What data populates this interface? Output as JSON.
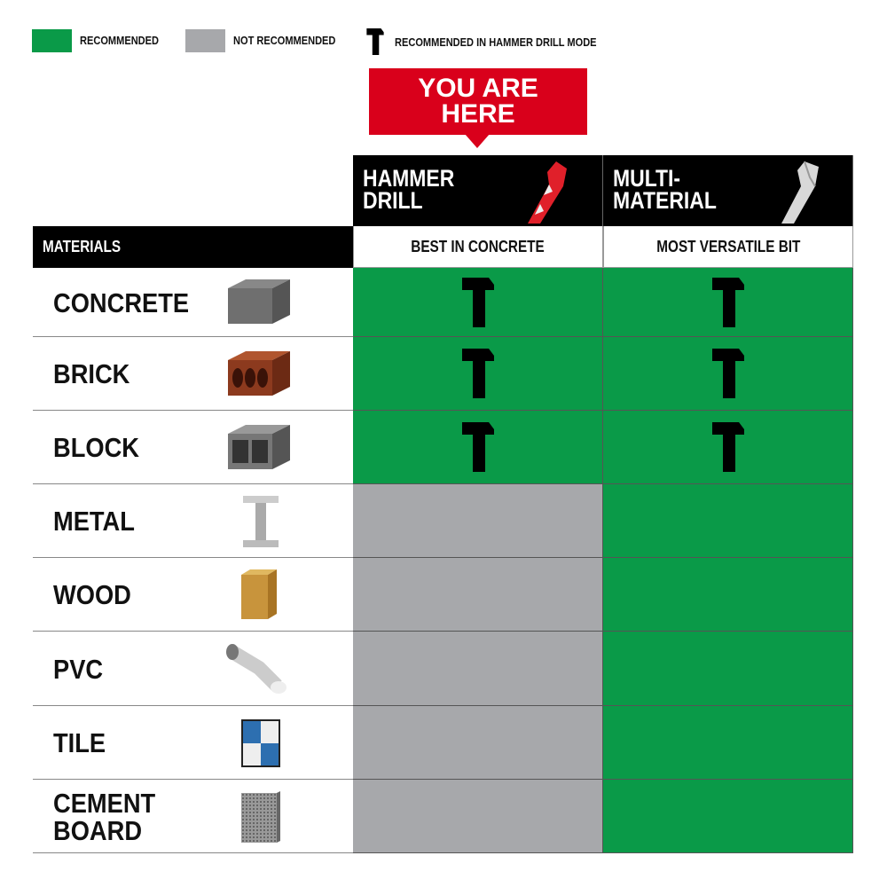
{
  "legend": {
    "recommended": {
      "label": "RECOMMENDED",
      "color": "#0a9a48"
    },
    "not_recommended": {
      "label": "NOT RECOMMENDED",
      "color": "#a7a8ab"
    },
    "hammer": {
      "label": "RECOMMENDED IN HAMMER DRILL MODE",
      "icon": "hammer-icon"
    }
  },
  "callout": {
    "text": "YOU ARE HERE",
    "color": "#d9001b"
  },
  "columns": [
    {
      "title": "HAMMER\nDRILL",
      "subtitle": "BEST IN CONCRETE",
      "bit_color": "#e0202a"
    },
    {
      "title": "MULTI-\nMATERIAL",
      "subtitle": "MOST VERSATILE BIT",
      "bit_color": "#d8d8d8"
    }
  ],
  "materials_header": "MATERIALS",
  "rows": [
    {
      "material": "CONCRETE",
      "icon": "concrete-block-icon",
      "cells": [
        {
          "status": "recommended",
          "hammer_mode": true
        },
        {
          "status": "recommended",
          "hammer_mode": true
        }
      ]
    },
    {
      "material": "BRICK",
      "icon": "brick-icon",
      "cells": [
        {
          "status": "recommended",
          "hammer_mode": true
        },
        {
          "status": "recommended",
          "hammer_mode": true
        }
      ]
    },
    {
      "material": "BLOCK",
      "icon": "cinder-block-icon",
      "cells": [
        {
          "status": "recommended",
          "hammer_mode": true
        },
        {
          "status": "recommended",
          "hammer_mode": true
        }
      ]
    },
    {
      "material": "METAL",
      "icon": "i-beam-icon",
      "cells": [
        {
          "status": "not_recommended",
          "hammer_mode": false
        },
        {
          "status": "recommended",
          "hammer_mode": false
        }
      ]
    },
    {
      "material": "WOOD",
      "icon": "wood-block-icon",
      "cells": [
        {
          "status": "not_recommended",
          "hammer_mode": false
        },
        {
          "status": "recommended",
          "hammer_mode": false
        }
      ]
    },
    {
      "material": "PVC",
      "icon": "pvc-pipe-icon",
      "cells": [
        {
          "status": "not_recommended",
          "hammer_mode": false
        },
        {
          "status": "recommended",
          "hammer_mode": false
        }
      ]
    },
    {
      "material": "TILE",
      "icon": "tile-icon",
      "cells": [
        {
          "status": "not_recommended",
          "hammer_mode": false
        },
        {
          "status": "recommended",
          "hammer_mode": false
        }
      ]
    },
    {
      "material": "CEMENT\nBOARD",
      "icon": "cement-board-icon",
      "cells": [
        {
          "status": "not_recommended",
          "hammer_mode": false
        },
        {
          "status": "recommended",
          "hammer_mode": false
        }
      ]
    }
  ]
}
